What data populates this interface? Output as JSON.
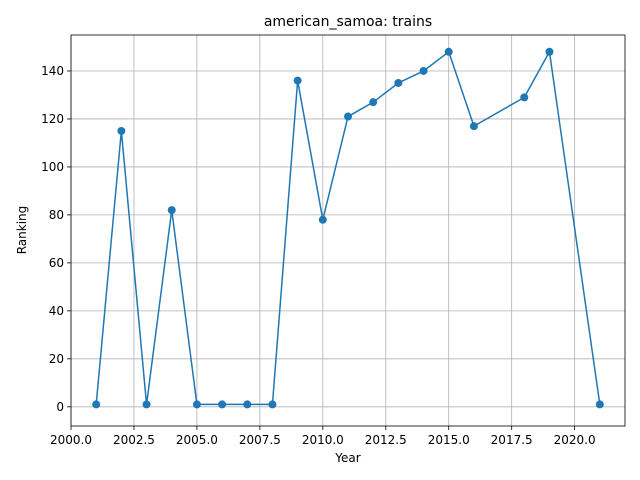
{
  "chart_data": {
    "type": "line",
    "title": "american_samoa: trains",
    "xlabel": "Year",
    "ylabel": "Ranking",
    "xlim": [
      2000.0,
      2022.0
    ],
    "ylim": [
      -8,
      155
    ],
    "xticks": [
      2000.0,
      2002.5,
      2005.0,
      2007.5,
      2010.0,
      2012.5,
      2015.0,
      2017.5,
      2020.0
    ],
    "xtick_labels": [
      "2000.0",
      "2002.5",
      "2005.0",
      "2007.5",
      "2010.0",
      "2012.5",
      "2015.0",
      "2017.5",
      "2020.0"
    ],
    "yticks": [
      0,
      20,
      40,
      60,
      80,
      100,
      120,
      140
    ],
    "ytick_labels": [
      "0",
      "20",
      "40",
      "60",
      "80",
      "100",
      "120",
      "140"
    ],
    "grid": true,
    "series": [
      {
        "color": "#1f77b4",
        "marker": "circle",
        "x": [
          2001,
          2002,
          2003,
          2004,
          2005,
          2006,
          2007,
          2008,
          2009,
          2010,
          2011,
          2012,
          2013,
          2014,
          2015,
          2016,
          2018,
          2019,
          2021
        ],
        "y": [
          1,
          115,
          1,
          82,
          1,
          1,
          1,
          1,
          136,
          78,
          121,
          127,
          135,
          140,
          148,
          117,
          129,
          148,
          1
        ]
      }
    ]
  }
}
